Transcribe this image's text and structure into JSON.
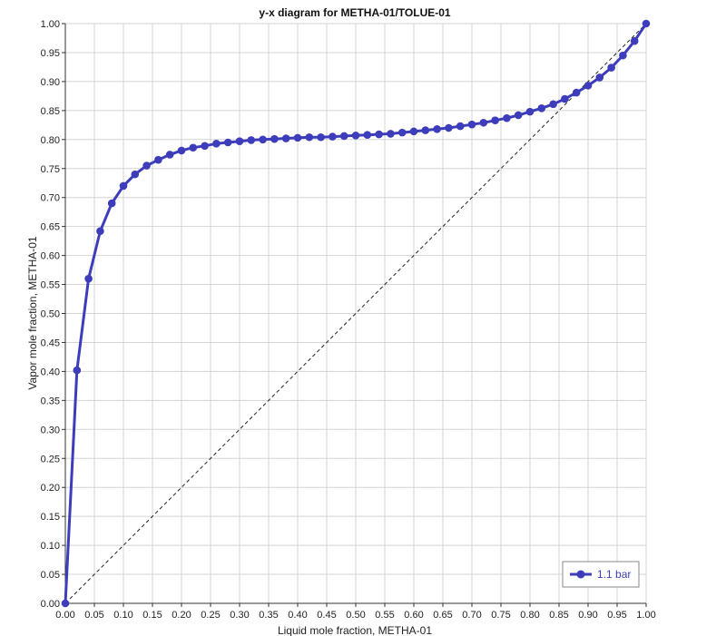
{
  "chart_data": {
    "type": "line",
    "title": "y-x diagram for METHA-01/TOLUE-01",
    "xlabel": "Liquid mole fraction, METHA-01",
    "ylabel": "Vapor mole fraction, METHA-01",
    "xlim": [
      0,
      1
    ],
    "ylim": [
      0,
      1
    ],
    "x_ticks": [
      "0.00",
      "0.05",
      "0.10",
      "0.15",
      "0.20",
      "0.25",
      "0.30",
      "0.35",
      "0.40",
      "0.45",
      "0.50",
      "0.55",
      "0.60",
      "0.65",
      "0.70",
      "0.75",
      "0.80",
      "0.85",
      "0.90",
      "0.95",
      "1.00"
    ],
    "y_ticks": [
      "0.00",
      "0.05",
      "0.10",
      "0.15",
      "0.20",
      "0.25",
      "0.30",
      "0.35",
      "0.40",
      "0.45",
      "0.50",
      "0.55",
      "0.60",
      "0.65",
      "0.70",
      "0.75",
      "0.80",
      "0.85",
      "0.90",
      "0.95",
      "1.00"
    ],
    "grid": true,
    "legend_position": "bottom-right",
    "diagonal_reference": true,
    "series": [
      {
        "name": "1.1 bar",
        "color": "#3d3dbb",
        "x": [
          0.0,
          0.02,
          0.04,
          0.06,
          0.08,
          0.1,
          0.12,
          0.14,
          0.16,
          0.18,
          0.2,
          0.22,
          0.24,
          0.26,
          0.28,
          0.3,
          0.32,
          0.34,
          0.36,
          0.38,
          0.4,
          0.42,
          0.44,
          0.46,
          0.48,
          0.5,
          0.52,
          0.54,
          0.56,
          0.58,
          0.6,
          0.62,
          0.64,
          0.66,
          0.68,
          0.7,
          0.72,
          0.74,
          0.76,
          0.78,
          0.8,
          0.82,
          0.84,
          0.86,
          0.88,
          0.9,
          0.92,
          0.94,
          0.96,
          0.98,
          1.0
        ],
        "y": [
          0.0,
          0.402,
          0.56,
          0.642,
          0.69,
          0.72,
          0.74,
          0.755,
          0.765,
          0.774,
          0.781,
          0.786,
          0.789,
          0.793,
          0.795,
          0.797,
          0.799,
          0.8,
          0.801,
          0.802,
          0.803,
          0.804,
          0.804,
          0.805,
          0.806,
          0.807,
          0.808,
          0.809,
          0.81,
          0.812,
          0.814,
          0.816,
          0.818,
          0.82,
          0.823,
          0.826,
          0.829,
          0.833,
          0.837,
          0.842,
          0.848,
          0.854,
          0.861,
          0.87,
          0.881,
          0.893,
          0.907,
          0.924,
          0.945,
          0.97,
          1.0
        ]
      }
    ]
  }
}
